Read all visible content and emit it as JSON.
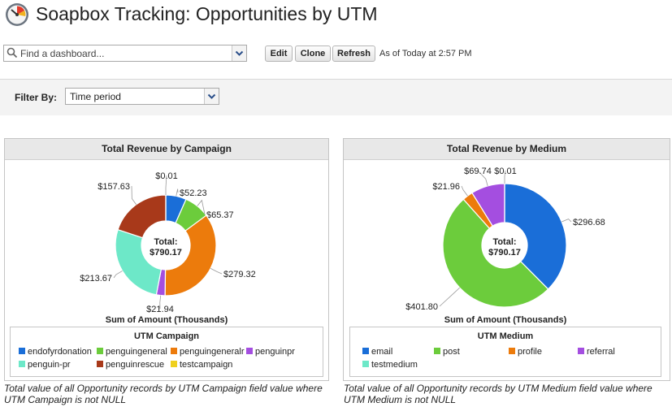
{
  "header": {
    "title": "Soapbox Tracking: Opportunities by UTM"
  },
  "toolbar": {
    "search_placeholder": "Find a dashboard...",
    "edit_label": "Edit",
    "clone_label": "Clone",
    "refresh_label": "Refresh",
    "as_of": "As of Today at 2:57 PM"
  },
  "filter": {
    "label": "Filter By:",
    "value": "Time period"
  },
  "chart_data": [
    {
      "type": "donut",
      "title": "Total Revenue by Campaign",
      "center_label": "Total:",
      "center_value": "$790.17",
      "axis_label": "Sum of Amount (Thousands)",
      "legend_title": "UTM Campaign",
      "slices": [
        {
          "name": "endofyrdonation",
          "value": 52.23,
          "label": "$52.23",
          "color": "#1a6ed8"
        },
        {
          "name": "penguingeneral",
          "value": 65.37,
          "label": "$65.37",
          "color": "#6ccc3c"
        },
        {
          "name": "penguingeneralr",
          "value": 279.32,
          "label": "$279.32",
          "color": "#ec7b0c"
        },
        {
          "name": "penguinpr",
          "value": 21.94,
          "label": "$21.94",
          "color": "#a44ee0"
        },
        {
          "name": "penguin-pr",
          "value": 213.67,
          "label": "$213.67",
          "color": "#6de8c8"
        },
        {
          "name": "penguinrescue",
          "value": 157.63,
          "label": "$157.63",
          "color": "#a8391a"
        },
        {
          "name": "testcampaign",
          "value": 0.01,
          "label": "$0.01",
          "color": "#efd01e"
        }
      ]
    },
    {
      "type": "donut",
      "title": "Total Revenue by Medium",
      "center_label": "Total:",
      "center_value": "$790.17",
      "axis_label": "Sum of Amount (Thousands)",
      "legend_title": "UTM Medium",
      "slices": [
        {
          "name": "email",
          "value": 296.68,
          "label": "$296.68",
          "color": "#1a6ed8"
        },
        {
          "name": "post",
          "value": 401.8,
          "label": "$401.80",
          "color": "#6ccc3c"
        },
        {
          "name": "profile",
          "value": 21.96,
          "label": "$21.96",
          "color": "#ec7b0c"
        },
        {
          "name": "referral",
          "value": 69.74,
          "label": "$69.74",
          "color": "#a44ee0"
        },
        {
          "name": "testmedium",
          "value": 0.01,
          "label": "$0.01",
          "color": "#6de8c8"
        }
      ]
    }
  ],
  "footnotes": {
    "left": "Total value of all Opportunity records by UTM Campaign field value where UTM Campaign is not NULL",
    "right": "Total value of all Opportunity records by UTM Medium field value where UTM Medium is not NULL"
  },
  "icons": {
    "dashboard": "dashboard-gauge-icon",
    "search": "search-icon",
    "dropdown": "chevron-down-icon"
  }
}
